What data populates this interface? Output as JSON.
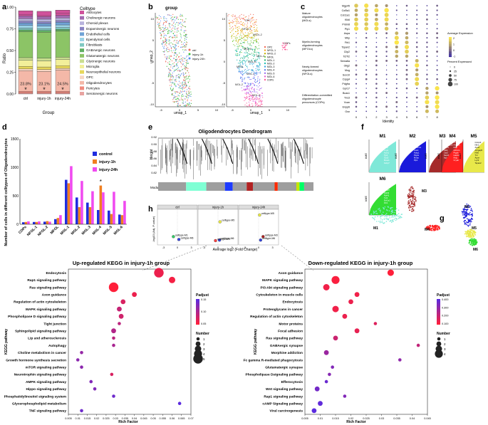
{
  "panel_labels": {
    "a": "a",
    "b": "b",
    "c": "c",
    "d": "d",
    "e": "e",
    "f": "f",
    "g": "g",
    "h": "h"
  },
  "chart_data": [
    {
      "id": "a",
      "type": "bar",
      "stacked": true,
      "categories": [
        "ctrl",
        "injury-1h",
        "injury-24h"
      ],
      "xlabel": "Group",
      "ylabel": "Ratio",
      "ylim": [
        0,
        1
      ],
      "yticks": [
        "0.00",
        "0.25",
        "0.50",
        "0.75",
        "1.00"
      ],
      "legend_title": "Celltype",
      "series": [
        {
          "name": "Serotonergic neurons",
          "color": "#e8a3a0",
          "values": [
            0.01,
            0.01,
            0.01
          ]
        },
        {
          "name": "Pericytes",
          "color": "#f08a7e",
          "values": [
            0.02,
            0.02,
            0.02
          ]
        },
        {
          "name": "Oligodendrocytes",
          "color": "#f4b8a8",
          "values": [
            0.238,
            0.231,
            0.245
          ]
        },
        {
          "name": "OPC",
          "color": "#f7d7c4",
          "values": [
            0.02,
            0.02,
            0.02
          ]
        },
        {
          "name": "Neuroepithelial neurons",
          "color": "#e7d75a",
          "values": [
            0.03,
            0.03,
            0.03
          ]
        },
        {
          "name": "Microglia",
          "color": "#f2ef9a",
          "values": [
            0.07,
            0.07,
            0.07
          ]
        },
        {
          "name": "Glycinergic neurons",
          "color": "#c9de8f",
          "values": [
            0.03,
            0.03,
            0.03
          ]
        },
        {
          "name": "Glutamatergic neurons",
          "color": "#8cc466",
          "values": [
            0.3,
            0.3,
            0.3
          ]
        },
        {
          "name": "GABAergic neurons",
          "color": "#61b063",
          "values": [
            0.02,
            0.02,
            0.02
          ]
        },
        {
          "name": "Fibroblasts",
          "color": "#7fc8c1",
          "values": [
            0.02,
            0.02,
            0.02
          ]
        },
        {
          "name": "Ependymal cells",
          "color": "#9bd3e6",
          "values": [
            0.03,
            0.03,
            0.03
          ]
        },
        {
          "name": "Endothelial cells",
          "color": "#6fa3d6",
          "values": [
            0.03,
            0.03,
            0.03
          ]
        },
        {
          "name": "Dopaminergic neurons",
          "color": "#8a84c4",
          "values": [
            0.02,
            0.02,
            0.02
          ]
        },
        {
          "name": "Choroid plexus",
          "color": "#b8b3dd",
          "values": [
            0.03,
            0.03,
            0.03
          ]
        },
        {
          "name": "Cholinergic neurons",
          "color": "#a36bb0",
          "values": [
            0.03,
            0.03,
            0.03
          ]
        },
        {
          "name": "Astrocytes",
          "color": "#d0529b",
          "values": [
            0.06,
            0.06,
            0.06
          ]
        }
      ],
      "percent_labels": [
        "23.8%",
        "23.1%",
        "24.5%"
      ],
      "markers": [
        "*",
        "*",
        "*"
      ]
    },
    {
      "id": "b",
      "type": "scatter",
      "title": "group",
      "xlabel": "umap_1",
      "ylabel": "umap_2",
      "xticks": [
        "-5",
        "0",
        "5",
        "10"
      ],
      "yticks": [
        "-10",
        "-5",
        "0",
        "5",
        "10"
      ],
      "legend": [
        {
          "name": "ctrl",
          "color": "#f26b5b"
        },
        {
          "name": "injury-1h",
          "color": "#3fbf3f"
        },
        {
          "name": "injury-24h",
          "color": "#5b8ff0"
        }
      ],
      "cluster_labels": [
        "OPC",
        "NFOL-1",
        "NFOL-2",
        "MFOL",
        "MOL-1",
        "MOL-2",
        "MOL-3",
        "MOL-4",
        "MOL-5",
        "MOL-6",
        "COPs"
      ],
      "cluster_colors": [
        "#f26b5b",
        "#f5a623",
        "#c9b400",
        "#7ac943",
        "#2bb673",
        "#1fbfb8",
        "#3aa8e0",
        "#5b7cf0",
        "#9b6bf0",
        "#e35bd6",
        "#ff5c9a"
      ]
    },
    {
      "id": "c",
      "type": "scatter",
      "subtype": "dotplot",
      "xlabel": "Identity",
      "x": [
        "0",
        "1",
        "2",
        "3",
        "4",
        "5",
        "6",
        "7",
        "8"
      ],
      "genes": [
        "Mgp45",
        "Col5a1",
        "Col11a1",
        "Klk6",
        "Prdm8",
        "Plp1",
        "Aspa",
        "Mbp",
        "Fth1",
        "Tspan2",
        "Clip2",
        "Tcf7l2",
        "Sema6a",
        "Olig2",
        "Mog",
        "Sox10",
        "Cspg4",
        "Pdgfra",
        "Gpr17",
        "Bcas1",
        "Tns3",
        "Vcan",
        "Enpp6",
        "Gsn"
      ],
      "groups": [
        "Mature oligodendrocytes (MOLs)",
        "Myelin-forming oligodendrocytes (MFOLs)",
        "Newly-formed oligodendrocytes (NFOLs)",
        "Differentiation-committed oligodendrocyte precursors (COPs)"
      ],
      "avg_expr_title": "Average Expression",
      "avg_expr_ticks": [
        "2",
        "1",
        "0",
        "-1"
      ],
      "pct_title": "Percent Expressed",
      "pct_values": [
        "0",
        "25",
        "50",
        "75",
        "100"
      ]
    },
    {
      "id": "d",
      "type": "bar",
      "categories": [
        "COPs",
        "NFOL-1",
        "NFOL-2",
        "MFOL",
        "MOL-1",
        "MOL-2",
        "MOL-3",
        "MOL-4",
        "MOL-5",
        "MOL-6"
      ],
      "ylabel": "Number of cells in different celltypes of Oligodendrocytes",
      "ylim": [
        0,
        1500
      ],
      "yticks": [
        "0",
        "500",
        "1000",
        "1500"
      ],
      "series": [
        {
          "name": "control",
          "color": "#1f2de0",
          "values": [
            35,
            40,
            45,
            90,
            780,
            470,
            380,
            250,
            240,
            170
          ]
        },
        {
          "name": "injury-1h",
          "color": "#f07f21",
          "values": [
            40,
            40,
            55,
            110,
            720,
            300,
            300,
            680,
            180,
            160
          ]
        },
        {
          "name": "injury-24h",
          "color": "#f04af0",
          "values": [
            50,
            50,
            45,
            160,
            1020,
            760,
            580,
            560,
            570,
            410
          ]
        }
      ],
      "annotation": "*"
    },
    {
      "id": "e",
      "type": "line",
      "subtype": "dendrogram",
      "title": "Oligodendrocytes Dendrogram",
      "ylabel": "Height",
      "yticks": [
        "0.92",
        "0.90",
        "0.88",
        "0.86",
        "0.84",
        "0.82"
      ],
      "module_label": "Module colors",
      "module_colors": [
        "#9e9e9e",
        "#7fffd4",
        "#9e9e9e",
        "#1e3cff",
        "#9e9e9e",
        "#b22222",
        "#9e9e9e",
        "#ff2a00",
        "#9e9e9e",
        "#c6e600",
        "#00ff66",
        "#9e9e9e"
      ]
    },
    {
      "id": "f",
      "type": "area",
      "modules": [
        {
          "name": "M1",
          "color": "#7fe8d8",
          "genes": [
            "Mgmt4",
            "Prdt2",
            "Gfap",
            "Lrig1",
            "Actn1",
            "Tjp1",
            "Scd2",
            "Bcas1",
            "Fabp7"
          ]
        },
        {
          "name": "M2",
          "color": "#1a1adb",
          "genes": [
            "Opalin",
            "Ncb1",
            "Plekhh1",
            "Ank3",
            "Ndrg1",
            "Ptgds",
            "Mobp",
            "Plp1"
          ]
        },
        {
          "name": "M3",
          "color": "#a52a2a",
          "genes": [
            "Ermn",
            "Tmem125",
            "Ptgds",
            "Klk6",
            "Car2",
            "Sept4",
            "Apod"
          ]
        },
        {
          "name": "M4",
          "color": "#ff2020",
          "genes": [
            "Tmem141",
            "Hba-a1",
            "Mbp",
            "Hbb-bs",
            "Ptgds",
            "Hapln2",
            "Mog",
            "Cryab"
          ]
        },
        {
          "name": "M5",
          "color": "#e8e84a",
          "genes": [
            "Cnksr3",
            "Nfe2",
            "Apod",
            "Arhgap5",
            "Klk6",
            "Tnr",
            "Apoe",
            "Lyz2",
            "Tspan2"
          ]
        },
        {
          "name": "M6",
          "color": "#33dd33",
          "genes": [
            "Cox6c",
            "Rpl13",
            "Rps27",
            "Rpl32",
            "Rpl41",
            "Tpt1",
            "Eef1a1",
            "Fth1"
          ]
        }
      ],
      "ylabel": "kME"
    },
    {
      "id": "g",
      "type": "scatter",
      "labels": [
        "M1",
        "M2",
        "M3",
        "M4",
        "M5",
        "M6"
      ]
    },
    {
      "id": "h",
      "type": "scatter",
      "subtype": "volcano",
      "facets": [
        "ctrl",
        "injury-1h",
        "injury-24h"
      ],
      "xlabel": "Average log2 (Fold Change)",
      "ylabel": "-log10 (Adj. P-value)",
      "xticks": [
        "-3",
        "0",
        "3"
      ],
      "points": [
        {
          "facet": "ctrl",
          "label": "celltype-M1",
          "x": -0.8,
          "y": 1.2,
          "color": "#33cc66"
        },
        {
          "facet": "ctrl",
          "label": "celltype-M6",
          "x": 0.3,
          "y": 0.7,
          "color": "#3344dd"
        },
        {
          "facet": "injury-1h",
          "label": "celltype-M5",
          "x": 0.4,
          "y": 3.8,
          "color": "#eeee44"
        },
        {
          "facet": "injury-1h",
          "label": "celltype-M6",
          "x": 0.3,
          "y": 0.6,
          "color": "#3344dd"
        },
        {
          "facet": "injury-1h",
          "label": "celltype-M4",
          "x": -0.5,
          "y": 0.5,
          "color": "#ff4444"
        },
        {
          "facet": "injury-24h",
          "label": "celltype-M5",
          "x": 0.2,
          "y": 5.0,
          "color": "#eeee44"
        },
        {
          "facet": "injury-24h",
          "label": "celltype-M3",
          "x": 0.9,
          "y": 1.2,
          "color": "#aa2222"
        },
        {
          "facet": "injury-24h",
          "label": "celltype-M6",
          "x": 0.4,
          "y": 0.6,
          "color": "#3344dd"
        }
      ]
    },
    {
      "id": "kegg-up",
      "type": "scatter",
      "subtype": "bubble",
      "title": "Up-regulated KEGG in injury-1h group",
      "xlabel": "Rich Factor",
      "ylabel": "KEGG pathway",
      "xlim": [
        0.005,
        0.07
      ],
      "xticks": [
        "0.005",
        "0.01",
        "0.015",
        "0.02",
        "0.025",
        "0.03",
        "0.035",
        "0.04",
        "0.045",
        "0.05",
        "0.055",
        "0.06",
        "0.065",
        "0.07"
      ],
      "padjust_title": "Padjust",
      "padjust_ticks": [
        "0.15",
        "0.10",
        "0.05"
      ],
      "number_title": "Number",
      "number_values": [
        "1",
        "2",
        "3",
        "4",
        "5"
      ],
      "categories": [
        "Endocytosis",
        "Rap1 signaling pathway",
        "Ras signaling pathway",
        "Axon guidance",
        "Regulation of actin cytoskeleton",
        "MAPK signaling pathway",
        "Phospholipase D signaling pathway",
        "Tight junction",
        "Sphingolipid signaling pathway",
        "Lip and atherosclerosis",
        "Autophagy",
        "Choline metabolism in cancer",
        "Growth hormone synthesis secretion",
        "mTOR signaling pathway",
        "Neurotrophin signaling pathway",
        "AMPK signaling pathway",
        "Hippo signaling pathway",
        "Phosphatidylinositol signaling system",
        "Glycerophospholipid metabolism",
        "TNF signaling pathway"
      ],
      "values": [
        0.053,
        0.06,
        0.029,
        0.04,
        0.034,
        0.032,
        0.033,
        0.032,
        0.029,
        0.029,
        0.029,
        0.012,
        0.01,
        0.012,
        0.028,
        0.017,
        0.019,
        0.029,
        0.064,
        0.012
      ],
      "counts": [
        5,
        3,
        5,
        2,
        2,
        2,
        2,
        1,
        2,
        1,
        1,
        1,
        1,
        1,
        1,
        1,
        1,
        1,
        1,
        1
      ],
      "padj": [
        0.03,
        0.02,
        0.01,
        0.03,
        0.05,
        0.07,
        0.06,
        0.08,
        0.09,
        0.08,
        0.1,
        0.12,
        0.13,
        0.13,
        0.05,
        0.14,
        0.14,
        0.16,
        0.18,
        0.16
      ]
    },
    {
      "id": "kegg-down",
      "type": "scatter",
      "subtype": "bubble",
      "title": "Down-regulated KEGG in injury-1h group",
      "xlabel": "Rich Factor",
      "ylabel": "KEGG pathway",
      "xlim": [
        0.005,
        0.045
      ],
      "xticks": [
        "0.005",
        "0.01",
        "0.015",
        "0.02",
        "0.025",
        "0.03",
        "0.035",
        "0.04",
        "0.045"
      ],
      "padjust_title": "Padjust",
      "padjust_ticks": [
        "0.400",
        "0.300",
        "0.200",
        "0.100"
      ],
      "number_title": "Number",
      "number_values": [
        "1",
        "2",
        "3",
        "4"
      ],
      "categories": [
        "Axon guidance",
        "MAPK signaling pathway",
        "PI3-Akt signaling pathway",
        "Cytoskeleton in muscle cells",
        "Endocytosis",
        "Proteoglycans in cancer",
        "Regulation of actin cytoskeleton",
        "Motor proteins",
        "Focal adhesion",
        "Ras signaling pathway",
        "GABAergic synapse",
        "Morphine addiction",
        "Fc gamma R-mediated phagocytosis",
        "Glutamatergic synapse",
        "Phospholipase Dsignaling pathway",
        "Efferocytosis",
        "Wnt signaling pathway",
        "Rap1 signaling pathway",
        "cAMP Signaling pathway",
        "Viral carcinogenesis"
      ],
      "values": [
        0.033,
        0.015,
        0.012,
        0.022,
        0.02,
        0.015,
        0.018,
        0.028,
        0.022,
        0.015,
        0.042,
        0.012,
        0.036,
        0.014,
        0.013,
        0.012,
        0.009,
        0.018,
        0.01,
        0.008
      ],
      "counts": [
        3,
        4,
        3,
        2,
        2,
        3,
        2,
        1,
        2,
        2,
        1,
        2,
        1,
        1,
        1,
        1,
        2,
        1,
        2,
        2
      ],
      "padj": [
        0.09,
        0.1,
        0.12,
        0.12,
        0.13,
        0.12,
        0.13,
        0.16,
        0.14,
        0.2,
        0.22,
        0.3,
        0.32,
        0.35,
        0.34,
        0.4,
        0.38,
        0.35,
        0.42,
        0.43
      ]
    }
  ]
}
